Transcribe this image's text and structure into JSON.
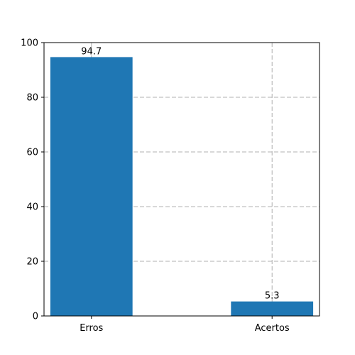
{
  "chart_data": {
    "type": "bar",
    "categories": [
      "Erros",
      "Acertos"
    ],
    "values": [
      94.7,
      5.3
    ],
    "value_labels": [
      "94.7",
      "5.3"
    ],
    "title": "",
    "xlabel": "",
    "ylabel": "",
    "ylim": [
      0,
      100
    ],
    "yticks": [
      0,
      20,
      40,
      60,
      80,
      100
    ],
    "ytick_labels": [
      "0",
      "20",
      "40",
      "60",
      "80",
      "100"
    ],
    "grid": true,
    "grid_style": "dashed",
    "bar_color": "#1f77b4",
    "grid_color": "#b0b0b0"
  }
}
